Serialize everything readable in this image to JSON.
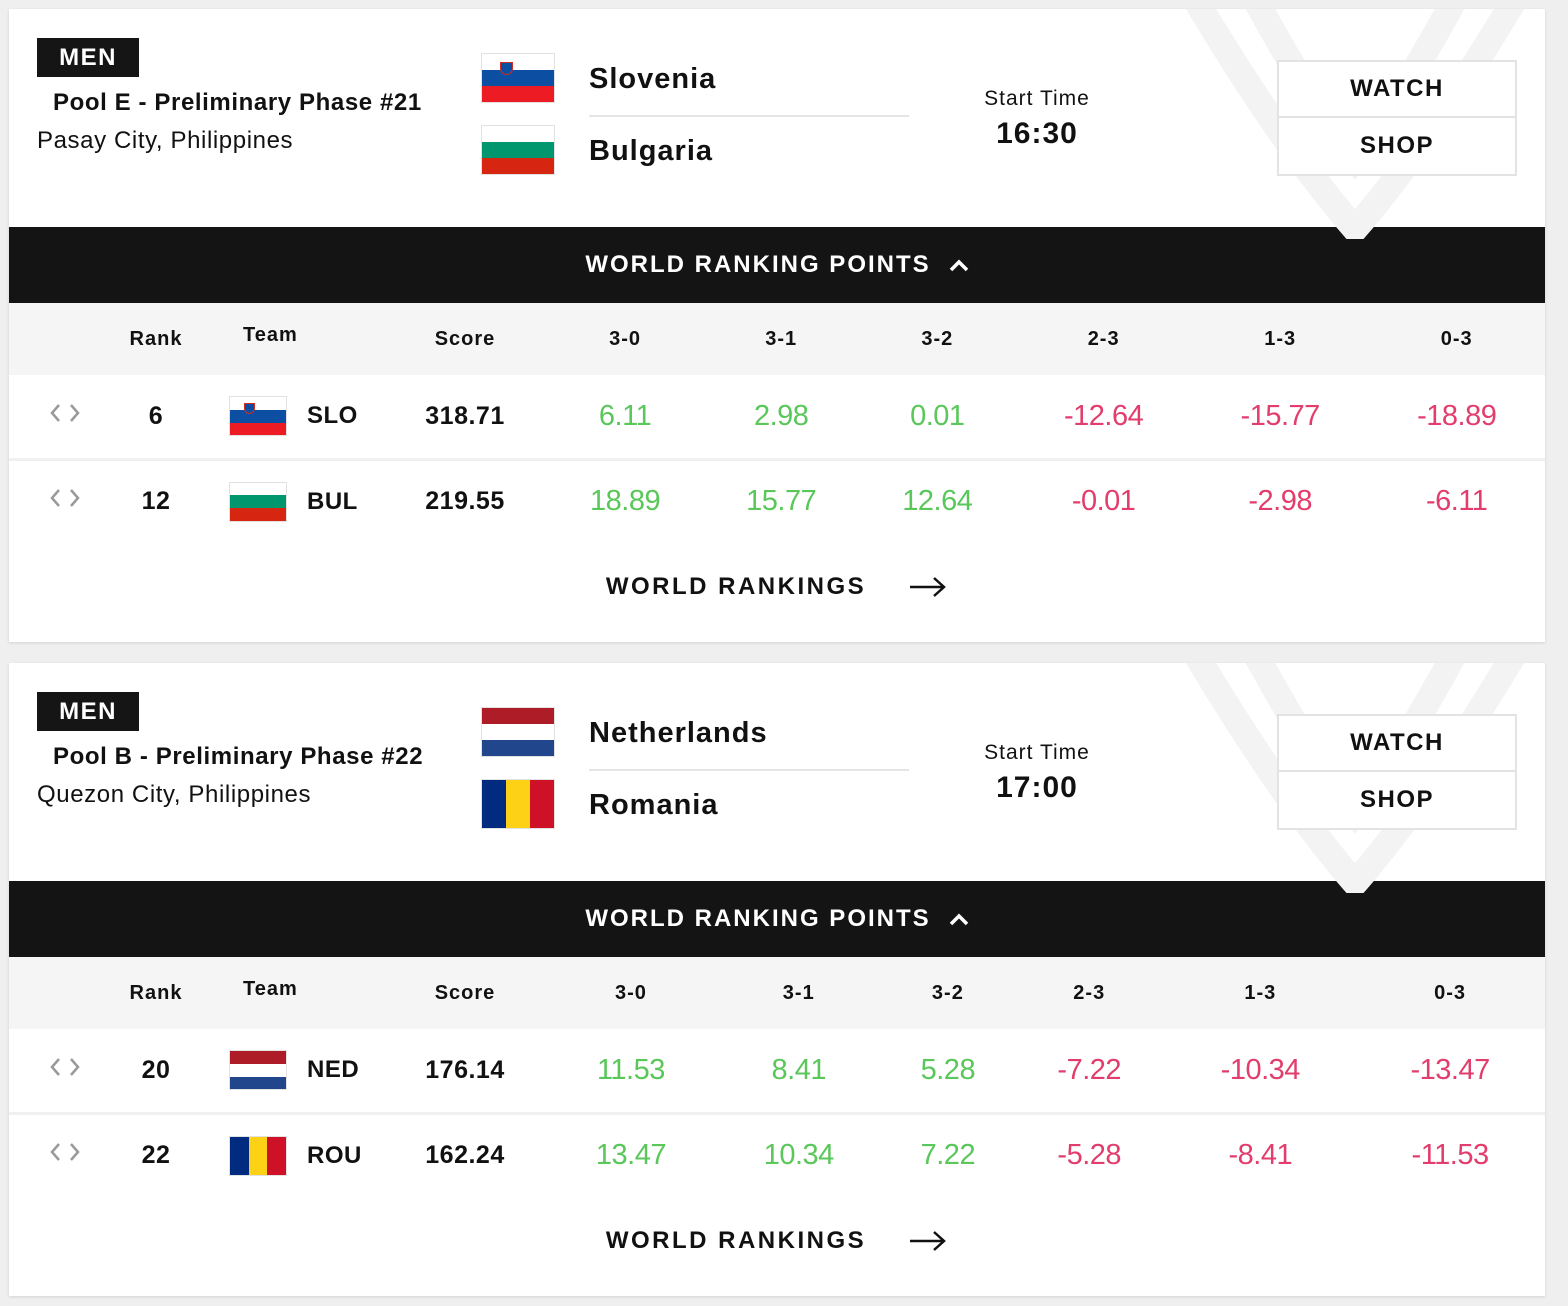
{
  "matches": [
    {
      "gender": "MEN",
      "pool": "Pool E - Preliminary Phase #21",
      "city": "Pasay City, Philippines",
      "team_a": "Slovenia",
      "team_b": "Bulgaria",
      "start_label": "Start Time",
      "start_time": "16:30",
      "watch": "WATCH",
      "shop": "SHOP",
      "wrp_title": "WORLD RANKING POINTS",
      "headers": [
        "Rank",
        "Team",
        "Score",
        "3-0",
        "3-1",
        "3-2",
        "2-3",
        "1-3",
        "0-3"
      ],
      "rows": [
        {
          "rank": "6",
          "code": "SLO",
          "score": "318.71",
          "r30": "6.11",
          "r31": "2.98",
          "r32": "0.01",
          "r23": "-12.64",
          "r13": "-15.77",
          "r03": "-18.89"
        },
        {
          "rank": "12",
          "code": "BUL",
          "score": "219.55",
          "r30": "18.89",
          "r31": "15.77",
          "r32": "12.64",
          "r23": "-0.01",
          "r13": "-2.98",
          "r03": "-6.11"
        }
      ],
      "rankings_link": "WORLD RANKINGS"
    },
    {
      "gender": "MEN",
      "pool": "Pool B - Preliminary Phase #22",
      "city": "Quezon City, Philippines",
      "team_a": "Netherlands",
      "team_b": "Romania",
      "start_label": "Start Time",
      "start_time": "17:00",
      "watch": "WATCH",
      "shop": "SHOP",
      "wrp_title": "WORLD RANKING POINTS",
      "headers": [
        "Rank",
        "Team",
        "Score",
        "3-0",
        "3-1",
        "3-2",
        "2-3",
        "1-3",
        "0-3"
      ],
      "rows": [
        {
          "rank": "20",
          "code": "NED",
          "score": "176.14",
          "r30": "11.53",
          "r31": "8.41",
          "r32": "5.28",
          "r23": "-7.22",
          "r13": "-10.34",
          "r03": "-13.47"
        },
        {
          "rank": "22",
          "code": "ROU",
          "score": "162.24",
          "r30": "13.47",
          "r31": "10.34",
          "r32": "7.22",
          "r23": "-5.28",
          "r13": "-8.41",
          "r03": "-11.53"
        }
      ],
      "rankings_link": "WORLD RANKINGS"
    }
  ],
  "colors": {
    "positive": "#5ac75a",
    "negative": "#e23d6c",
    "bar": "#141414",
    "flag_slovenia": [
      "#ffffff",
      "#0b4ea2",
      "#ed1c24"
    ],
    "flag_bulgaria": [
      "#ffffff",
      "#00966e",
      "#d62612"
    ],
    "flag_netherlands": [
      "#ae1c28",
      "#ffffff",
      "#21468b"
    ],
    "flag_romania": [
      "#002b7f",
      "#fcd116",
      "#ce1126"
    ]
  },
  "icons": {
    "expand": "chevron-up-icon",
    "rankings": "arrow-right-icon",
    "reorder": "left-right-arrows-icon"
  }
}
